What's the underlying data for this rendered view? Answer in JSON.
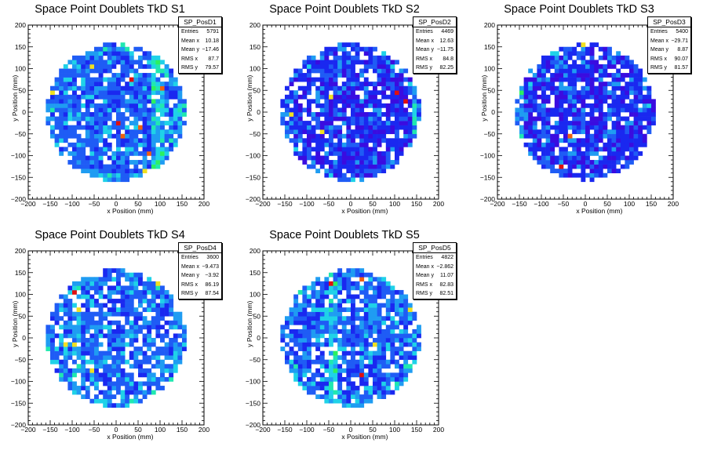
{
  "canvas": {
    "background": "#ffffff"
  },
  "colors": {
    "palette": [
      "#3a0ce0",
      "#1a28f0",
      "#1f5cf5",
      "#1f9cf2",
      "#1fd2e8",
      "#20e8b0",
      "#2cf060",
      "#9cf020",
      "#f0e020",
      "#f06010",
      "#e01010"
    ],
    "empty": "#ffffff"
  },
  "chart_data": [
    {
      "type": "heatmap",
      "title": "Space Point Doublets TkD S1",
      "xlabel": "x Position (mm)",
      "ylabel": "y Position (mm)",
      "xlim": [
        -200,
        200
      ],
      "ylim": [
        -200,
        200
      ],
      "xticks": [
        -200,
        -150,
        -100,
        -50,
        0,
        50,
        100,
        150,
        200
      ],
      "yticks": [
        -200,
        -150,
        -100,
        -50,
        0,
        50,
        100,
        150,
        200
      ],
      "region": "disk of radius ~160 mm centred at origin, 10 mm bins",
      "stats": {
        "name": "SP_PosD1",
        "entries": "5791",
        "mean_x": "10.18",
        "mean_y": "-17.46",
        "rms_x": "87.7",
        "rms_y": "79.57"
      },
      "seed": 11,
      "dominant_level": 2,
      "hot_band_x": 95,
      "empty_fraction": 0.12
    },
    {
      "type": "heatmap",
      "title": "Space Point Doublets TkD S2",
      "xlabel": "x Position (mm)",
      "ylabel": "y Position (mm)",
      "xlim": [
        -200,
        200
      ],
      "ylim": [
        -200,
        200
      ],
      "xticks": [
        -200,
        -150,
        -100,
        -50,
        0,
        50,
        100,
        150,
        200
      ],
      "yticks": [
        -200,
        -150,
        -100,
        -50,
        0,
        50,
        100,
        150,
        200
      ],
      "region": "disk of radius ~160 mm centred at origin, 10 mm bins",
      "stats": {
        "name": "SP_PosD2",
        "entries": "4469",
        "mean_x": "12.63",
        "mean_y": "-11.75",
        "rms_x": "84.8",
        "rms_y": "82.25"
      },
      "seed": 23,
      "dominant_level": 1,
      "hot_band_x": 155,
      "empty_fraction": 0.15
    },
    {
      "type": "heatmap",
      "title": "Space Point Doublets TkD S3",
      "xlabel": "x Position (mm)",
      "ylabel": "y Position (mm)",
      "xlim": [
        -200,
        200
      ],
      "ylim": [
        -200,
        200
      ],
      "xticks": [
        -200,
        -150,
        -100,
        -50,
        0,
        50,
        100,
        150,
        200
      ],
      "yticks": [
        -200,
        -150,
        -100,
        -50,
        0,
        50,
        100,
        150,
        200
      ],
      "region": "disk of radius ~160 mm centred at origin, 10 mm bins",
      "stats": {
        "name": "SP_PosD3",
        "entries": "5400",
        "mean_x": "-29.71",
        "mean_y": "8.87",
        "rms_x": "90.07",
        "rms_y": "81.57"
      },
      "seed": 37,
      "dominant_level": 1,
      "hot_band_x": -150,
      "empty_fraction": 0.14
    },
    {
      "type": "heatmap",
      "title": "Space Point Doublets TkD S4",
      "xlabel": "x Position (mm)",
      "ylabel": "y Position (mm)",
      "xlim": [
        -200,
        200
      ],
      "ylim": [
        -200,
        200
      ],
      "xticks": [
        -200,
        -150,
        -100,
        -50,
        0,
        50,
        100,
        150,
        200
      ],
      "yticks": [
        -200,
        -150,
        -100,
        -50,
        0,
        50,
        100,
        150,
        200
      ],
      "region": "disk of radius ~160 mm centred at origin, 10 mm bins",
      "stats": {
        "name": "SP_PosD4",
        "entries": "3600",
        "mean_x": "-9.473",
        "mean_y": "-3.92",
        "rms_x": "86.19",
        "rms_y": "87.54"
      },
      "seed": 51,
      "dominant_level": 2,
      "hot_band_x": -90,
      "empty_fraction": 0.24
    },
    {
      "type": "heatmap",
      "title": "Space Point Doublets TkD S5",
      "xlabel": "x Position (mm)",
      "ylabel": "y Position (mm)",
      "xlim": [
        -200,
        200
      ],
      "ylim": [
        -200,
        200
      ],
      "xticks": [
        -200,
        -150,
        -100,
        -50,
        0,
        50,
        100,
        150,
        200
      ],
      "yticks": [
        -200,
        -150,
        -100,
        -50,
        0,
        50,
        100,
        150,
        200
      ],
      "region": "disk of radius ~160 mm centred at origin, 10 mm bins",
      "stats": {
        "name": "SP_PosD5",
        "entries": "4822",
        "mean_x": "-2.862",
        "mean_y": "11.07",
        "rms_x": "82.83",
        "rms_y": "82.51"
      },
      "seed": 67,
      "dominant_level": 2,
      "hot_band_x": -40,
      "empty_fraction": 0.18
    }
  ],
  "stat_labels": {
    "entries": "Entries",
    "mean_x": "Mean x",
    "mean_y": "Mean y",
    "rms_x": "RMS x",
    "rms_y": "RMS y"
  }
}
